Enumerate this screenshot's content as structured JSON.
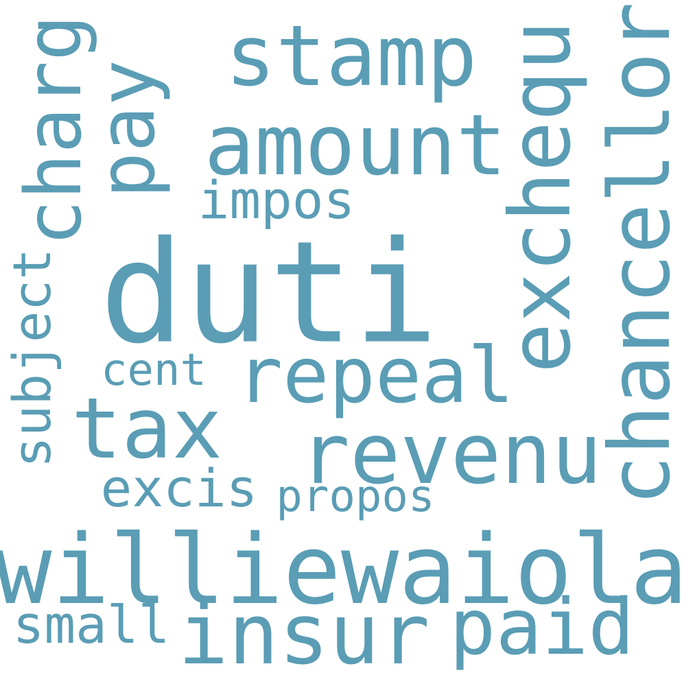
{
  "cloud": {
    "word_color": "#5a9db5",
    "background_color": "#ffffff",
    "words": {
      "duti": "duti",
      "williewaiola": "williewaiola",
      "stamp": "stamp",
      "amount": "amount",
      "chancellor": "chancellor",
      "exchequ": "exchequ",
      "revenu": "revenu",
      "tax": "tax",
      "repeal": "repeal",
      "insur": "insur",
      "paid": "paid",
      "pay": "pay",
      "charg": "charg",
      "excis": "excis",
      "impos": "impos",
      "small": "small",
      "subject": "subject",
      "propos": "propos",
      "cent": "cent"
    }
  }
}
